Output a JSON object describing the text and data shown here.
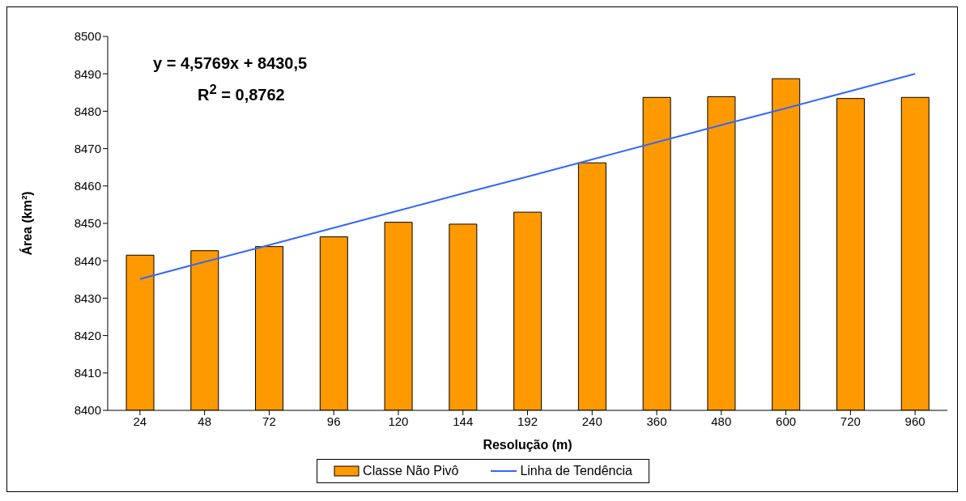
{
  "chart_data": {
    "type": "bar",
    "xlabel": "Resolução (m)",
    "ylabel": "Área (km²)",
    "categories": [
      "24",
      "48",
      "72",
      "96",
      "120",
      "144",
      "192",
      "240",
      "360",
      "480",
      "600",
      "720",
      "960"
    ],
    "series": [
      {
        "name": "Classe Não Pivô",
        "color": "#ff9900",
        "values": [
          8441.5,
          8442.7,
          8443.8,
          8446.4,
          8450.3,
          8449.8,
          8453.0,
          8466.2,
          8483.7,
          8483.9,
          8488.7,
          8483.4,
          8483.7
        ]
      },
      {
        "name": "Linha de Tendência",
        "type": "line",
        "color": "#3366ff",
        "values": [
          8435.1,
          8439.7,
          8444.2,
          8448.8,
          8453.4,
          8458.0,
          8462.5,
          8467.1,
          8471.7,
          8476.3,
          8480.8,
          8485.4,
          8490.0
        ]
      }
    ],
    "annotations": [
      "y = 4,5769x + 8430,5",
      "R$^{2}$ = 0,8762"
    ],
    "ylim": [
      8400,
      8500
    ],
    "yticks": [
      8400,
      8410,
      8420,
      8430,
      8440,
      8450,
      8460,
      8470,
      8480,
      8490,
      8500
    ],
    "grid": false,
    "legend": "bottom",
    "marker": "none",
    "line_style": "solid"
  }
}
